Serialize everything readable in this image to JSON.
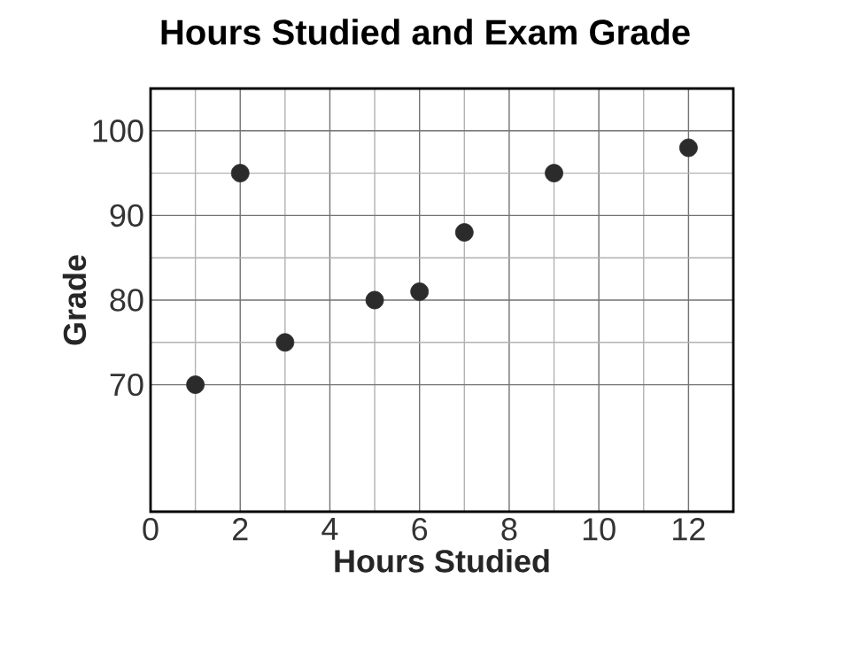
{
  "chart_data": {
    "type": "scatter",
    "title": "Hours Studied and Exam Grade",
    "xlabel": "Hours Studied",
    "ylabel": "Grade",
    "x": [
      1,
      2,
      3,
      5,
      6,
      7,
      9,
      12
    ],
    "values": [
      70,
      95,
      75,
      80,
      81,
      88,
      95,
      98
    ],
    "color": "#2b2b2b",
    "marker": "circle",
    "xlim": [
      0,
      13
    ],
    "ylim": [
      55,
      105
    ],
    "xticks": [
      0,
      2,
      4,
      6,
      8,
      10,
      12
    ],
    "yticks": [
      70,
      80,
      90,
      100
    ],
    "grid": true
  }
}
